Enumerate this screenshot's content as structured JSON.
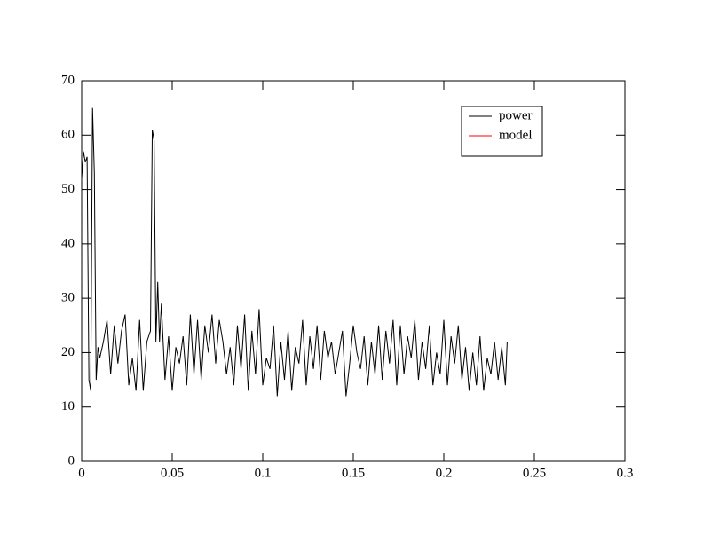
{
  "chart_data": {
    "type": "line",
    "xlim": [
      0,
      0.3
    ],
    "ylim": [
      0,
      70
    ],
    "xticks": [
      0,
      0.05,
      0.1,
      0.15,
      0.2,
      0.25,
      0.3
    ],
    "yticks": [
      0,
      10,
      20,
      30,
      40,
      50,
      60,
      70
    ],
    "legend": "upper right",
    "series": [
      {
        "name": "power",
        "color": "#000000",
        "x": [
          0,
          0.001,
          0.002,
          0.003,
          0.004,
          0.005,
          0.006,
          0.007,
          0.008,
          0.009,
          0.01,
          0.012,
          0.014,
          0.016,
          0.018,
          0.02,
          0.022,
          0.024,
          0.026,
          0.028,
          0.03,
          0.032,
          0.034,
          0.036,
          0.038,
          0.039,
          0.04,
          0.041,
          0.042,
          0.043,
          0.044,
          0.046,
          0.048,
          0.05,
          0.052,
          0.054,
          0.056,
          0.058,
          0.06,
          0.062,
          0.064,
          0.066,
          0.068,
          0.07,
          0.072,
          0.074,
          0.076,
          0.078,
          0.08,
          0.082,
          0.084,
          0.086,
          0.088,
          0.09,
          0.092,
          0.094,
          0.096,
          0.098,
          0.1,
          0.102,
          0.104,
          0.106,
          0.108,
          0.11,
          0.112,
          0.114,
          0.116,
          0.118,
          0.12,
          0.122,
          0.124,
          0.126,
          0.128,
          0.13,
          0.132,
          0.134,
          0.136,
          0.138,
          0.14,
          0.142,
          0.144,
          0.146,
          0.148,
          0.15,
          0.152,
          0.154,
          0.156,
          0.158,
          0.16,
          0.162,
          0.164,
          0.166,
          0.168,
          0.17,
          0.172,
          0.174,
          0.176,
          0.178,
          0.18,
          0.182,
          0.184,
          0.186,
          0.188,
          0.19,
          0.192,
          0.194,
          0.196,
          0.198,
          0.2,
          0.202,
          0.204,
          0.206,
          0.208,
          0.21,
          0.212,
          0.214,
          0.216,
          0.218,
          0.22,
          0.222,
          0.224,
          0.226,
          0.228,
          0.23,
          0.232,
          0.234,
          0.235
        ],
        "values": [
          52,
          57,
          55,
          56,
          15,
          13,
          65,
          53,
          15,
          21,
          19,
          22,
          26,
          16,
          25,
          18,
          24,
          27,
          14,
          19,
          13,
          26,
          13,
          22,
          24,
          61,
          59,
          22,
          33,
          22,
          29,
          15,
          23,
          13,
          21,
          18,
          23,
          14,
          27,
          16,
          26,
          15,
          25,
          20,
          27,
          18,
          26,
          22,
          16,
          21,
          14,
          25,
          17,
          27,
          13,
          24,
          16,
          28,
          14,
          19,
          17,
          25,
          12,
          22,
          15,
          24,
          13,
          21,
          18,
          26,
          14,
          23,
          17,
          25,
          15,
          24,
          19,
          22,
          16,
          20,
          24,
          12,
          18,
          25,
          20,
          17,
          23,
          14,
          22,
          16,
          25,
          15,
          24,
          18,
          26,
          14,
          25,
          16,
          23,
          19,
          26,
          15,
          22,
          17,
          25,
          14,
          20,
          16,
          26,
          14,
          23,
          18,
          25,
          15,
          21,
          13,
          20,
          14,
          23,
          13,
          19,
          16,
          22,
          15,
          21,
          14,
          22
        ]
      },
      {
        "name": "model",
        "color": "#ff0000",
        "x": [],
        "values": []
      }
    ]
  }
}
